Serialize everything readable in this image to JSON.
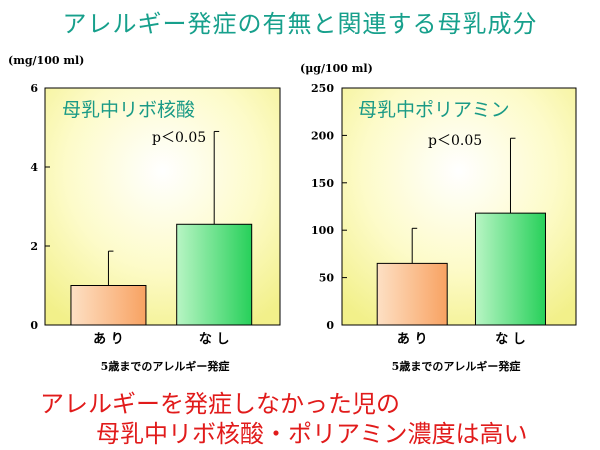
{
  "title": "アレルギー発症の有無と関連する母乳成分",
  "conclusion": {
    "line1": "アレルギーを発症しなかった児の",
    "line2": "母乳中リボ核酸・ポリアミン濃度は高い"
  },
  "colors": {
    "title": "#17a08c",
    "conclusion": "#e11b1b",
    "plot_bg": "#fdfbc9",
    "bar_ari": "#f8a262",
    "bar_nashi": "#27d05a"
  },
  "chart_data": [
    {
      "type": "bar",
      "title": "母乳中リボ核酸",
      "annotation": "p＜0.05",
      "ylabel": "(mg/100 ml)",
      "xlabel": "5歳までのアレルギー発症",
      "categories": [
        "あ り",
        "な し"
      ],
      "values": [
        1.0,
        2.55
      ],
      "error_upper": [
        1.87,
        4.9
      ],
      "ylim": [
        0,
        6
      ],
      "yticks": [
        "0",
        "2",
        "4",
        "6"
      ],
      "yticks_values": [
        0,
        2,
        4,
        6
      ]
    },
    {
      "type": "bar",
      "title": "母乳中ポリアミン",
      "annotation": "p＜0.05",
      "ylabel": "(μg/100 ml)",
      "xlabel": "5歳までのアレルギー発症",
      "categories": [
        "あ り",
        "な し"
      ],
      "values": [
        65,
        118
      ],
      "error_upper": [
        102,
        197
      ],
      "ylim": [
        0,
        250
      ],
      "yticks": [
        "0",
        "50",
        "100",
        "150",
        "200",
        "250"
      ],
      "yticks_values": [
        0,
        50,
        100,
        150,
        200,
        250
      ]
    }
  ]
}
